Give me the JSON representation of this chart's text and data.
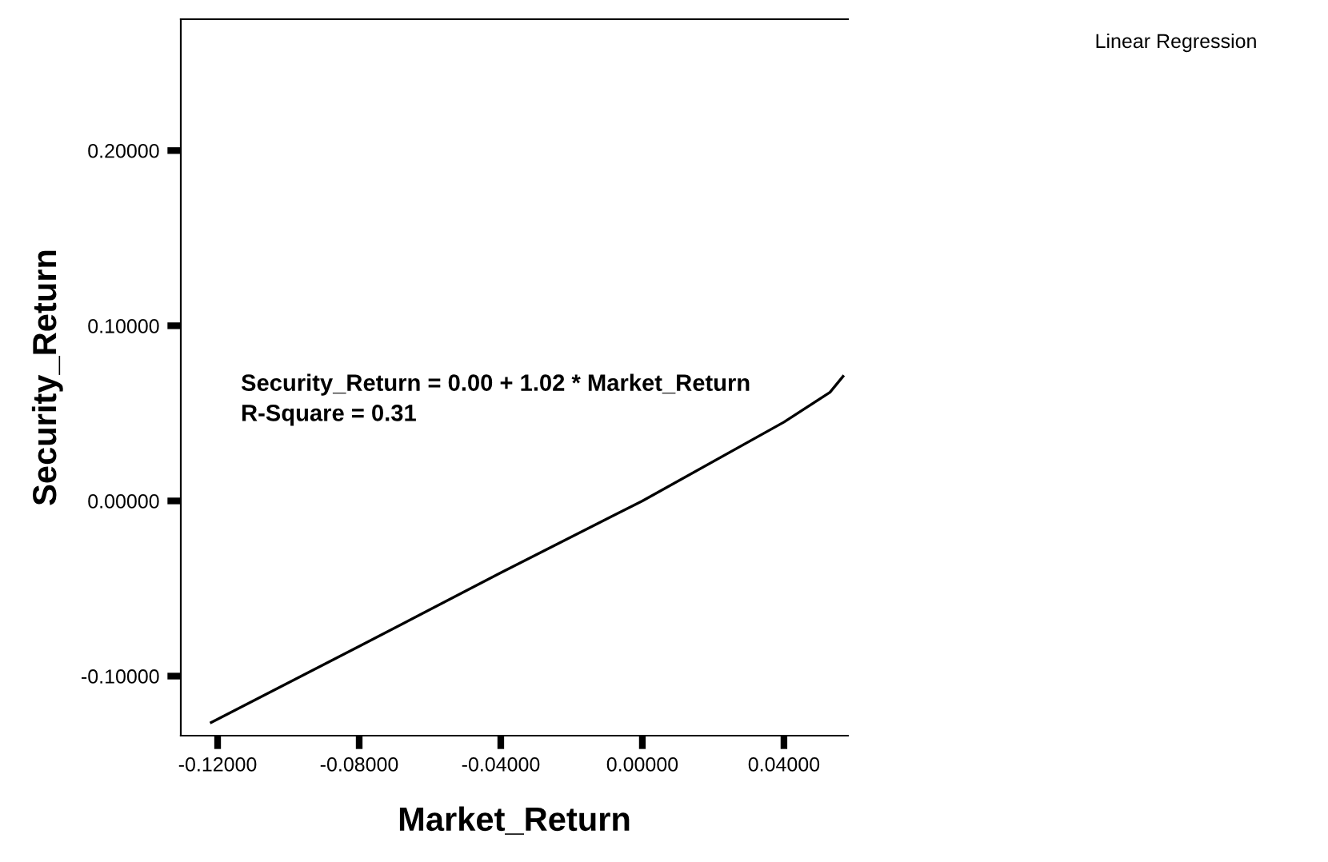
{
  "chart_data": {
    "type": "line",
    "xlabel": "Market_Return",
    "ylabel": "Security_Return",
    "x": [
      -0.1218,
      -0.08,
      -0.04,
      0.0,
      0.04,
      0.053,
      0.0567
    ],
    "series": [
      {
        "color": "#000000",
        "values": [
          -0.1265,
          -0.083,
          -0.041,
          0.0,
          0.045,
          0.062,
          0.0711
        ]
      }
    ],
    "xlim": [
      -0.1304,
      0.0581
    ],
    "ylim": [
      -0.134,
      0.275
    ],
    "xticks": [
      {
        "value": -0.12,
        "label": "-0.12000"
      },
      {
        "value": -0.08,
        "label": "-0.08000"
      },
      {
        "value": -0.04,
        "label": "-0.04000"
      },
      {
        "value": 0.0,
        "label": "0.00000"
      },
      {
        "value": 0.04,
        "label": "0.04000"
      }
    ],
    "yticks": [
      {
        "value": -0.1,
        "label": "-0.10000"
      },
      {
        "value": 0.0,
        "label": "0.00000"
      },
      {
        "value": 0.1,
        "label": "0.10000"
      },
      {
        "value": 0.2,
        "label": "0.20000"
      }
    ],
    "annotations": [
      "Security_Return = 0.00 + 1.02 * Market_Return\nR-Square = 0.31",
      "Linear Regression"
    ],
    "grid": false,
    "marker": "none",
    "line_style": "solid",
    "legend": false
  }
}
